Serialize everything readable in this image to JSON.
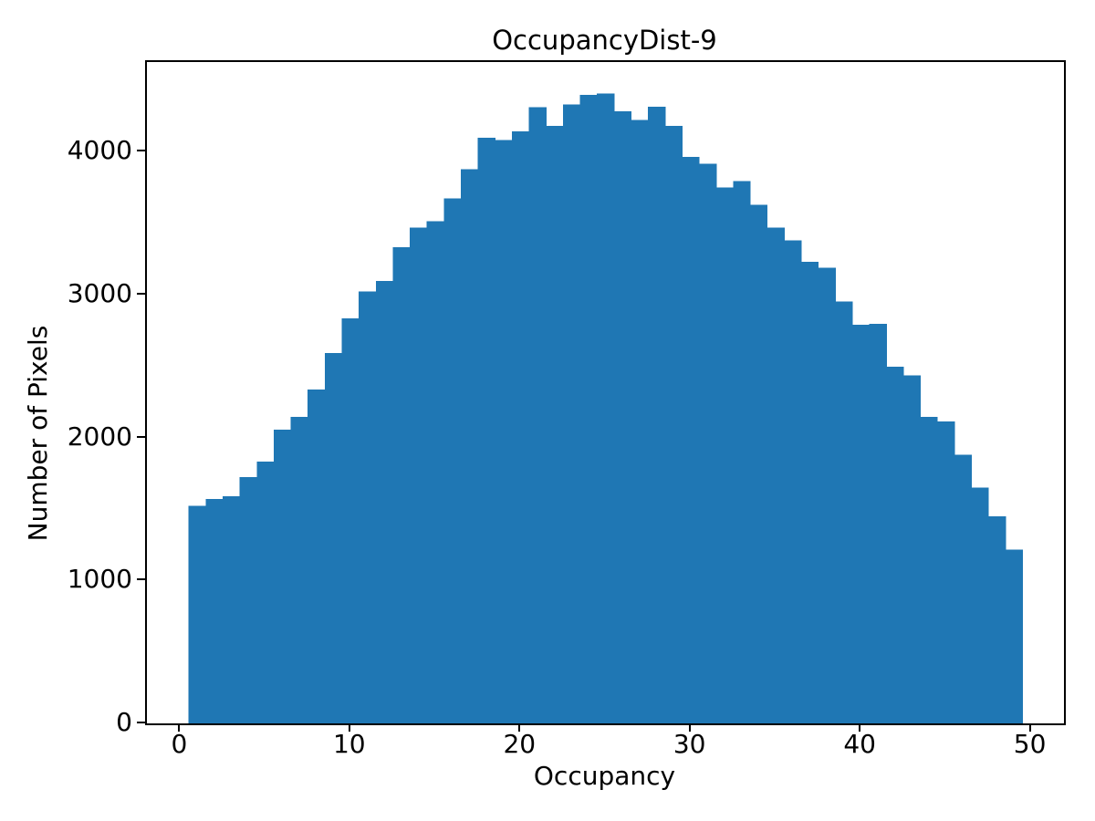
{
  "figure": {
    "title": "OccupancyDist-9",
    "xlabel": "Occupancy",
    "ylabel": "Number of Pixels"
  },
  "chart_data": {
    "type": "bar",
    "subtype": "histogram",
    "title": "OccupancyDist-9",
    "xlabel": "Occupancy",
    "ylabel": "Number of Pixels",
    "bar_color": "#1f77b4",
    "bin_width": 1,
    "bin_centers": [
      1,
      2,
      3,
      4,
      5,
      6,
      7,
      8,
      9,
      10,
      11,
      12,
      13,
      14,
      15,
      16,
      17,
      18,
      19,
      20,
      21,
      22,
      23,
      24,
      25,
      26,
      27,
      28,
      29,
      30,
      31,
      32,
      33,
      34,
      35,
      36,
      37,
      38,
      39,
      40,
      41,
      42,
      43,
      44,
      45,
      46,
      47,
      48,
      49
    ],
    "values": [
      1523,
      1569,
      1590,
      1724,
      1831,
      2054,
      2144,
      2335,
      2590,
      2831,
      3022,
      3095,
      3330,
      3466,
      3513,
      3670,
      3877,
      4096,
      4081,
      4140,
      4308,
      4180,
      4327,
      4394,
      4406,
      4279,
      4219,
      4313,
      4177,
      3960,
      3915,
      3749,
      3794,
      3626,
      3468,
      3377,
      3228,
      3185,
      2952,
      2788,
      2794,
      2494,
      2433,
      2144,
      2112,
      1878,
      1650,
      1448,
      1214
    ],
    "xlim": [
      -1.95,
      51.95
    ],
    "ylim": [
      0,
      4625
    ],
    "xticks": [
      0,
      10,
      20,
      30,
      40,
      50
    ],
    "yticks": [
      0,
      1000,
      2000,
      3000,
      4000
    ],
    "grid": false,
    "legend_position": "none"
  }
}
